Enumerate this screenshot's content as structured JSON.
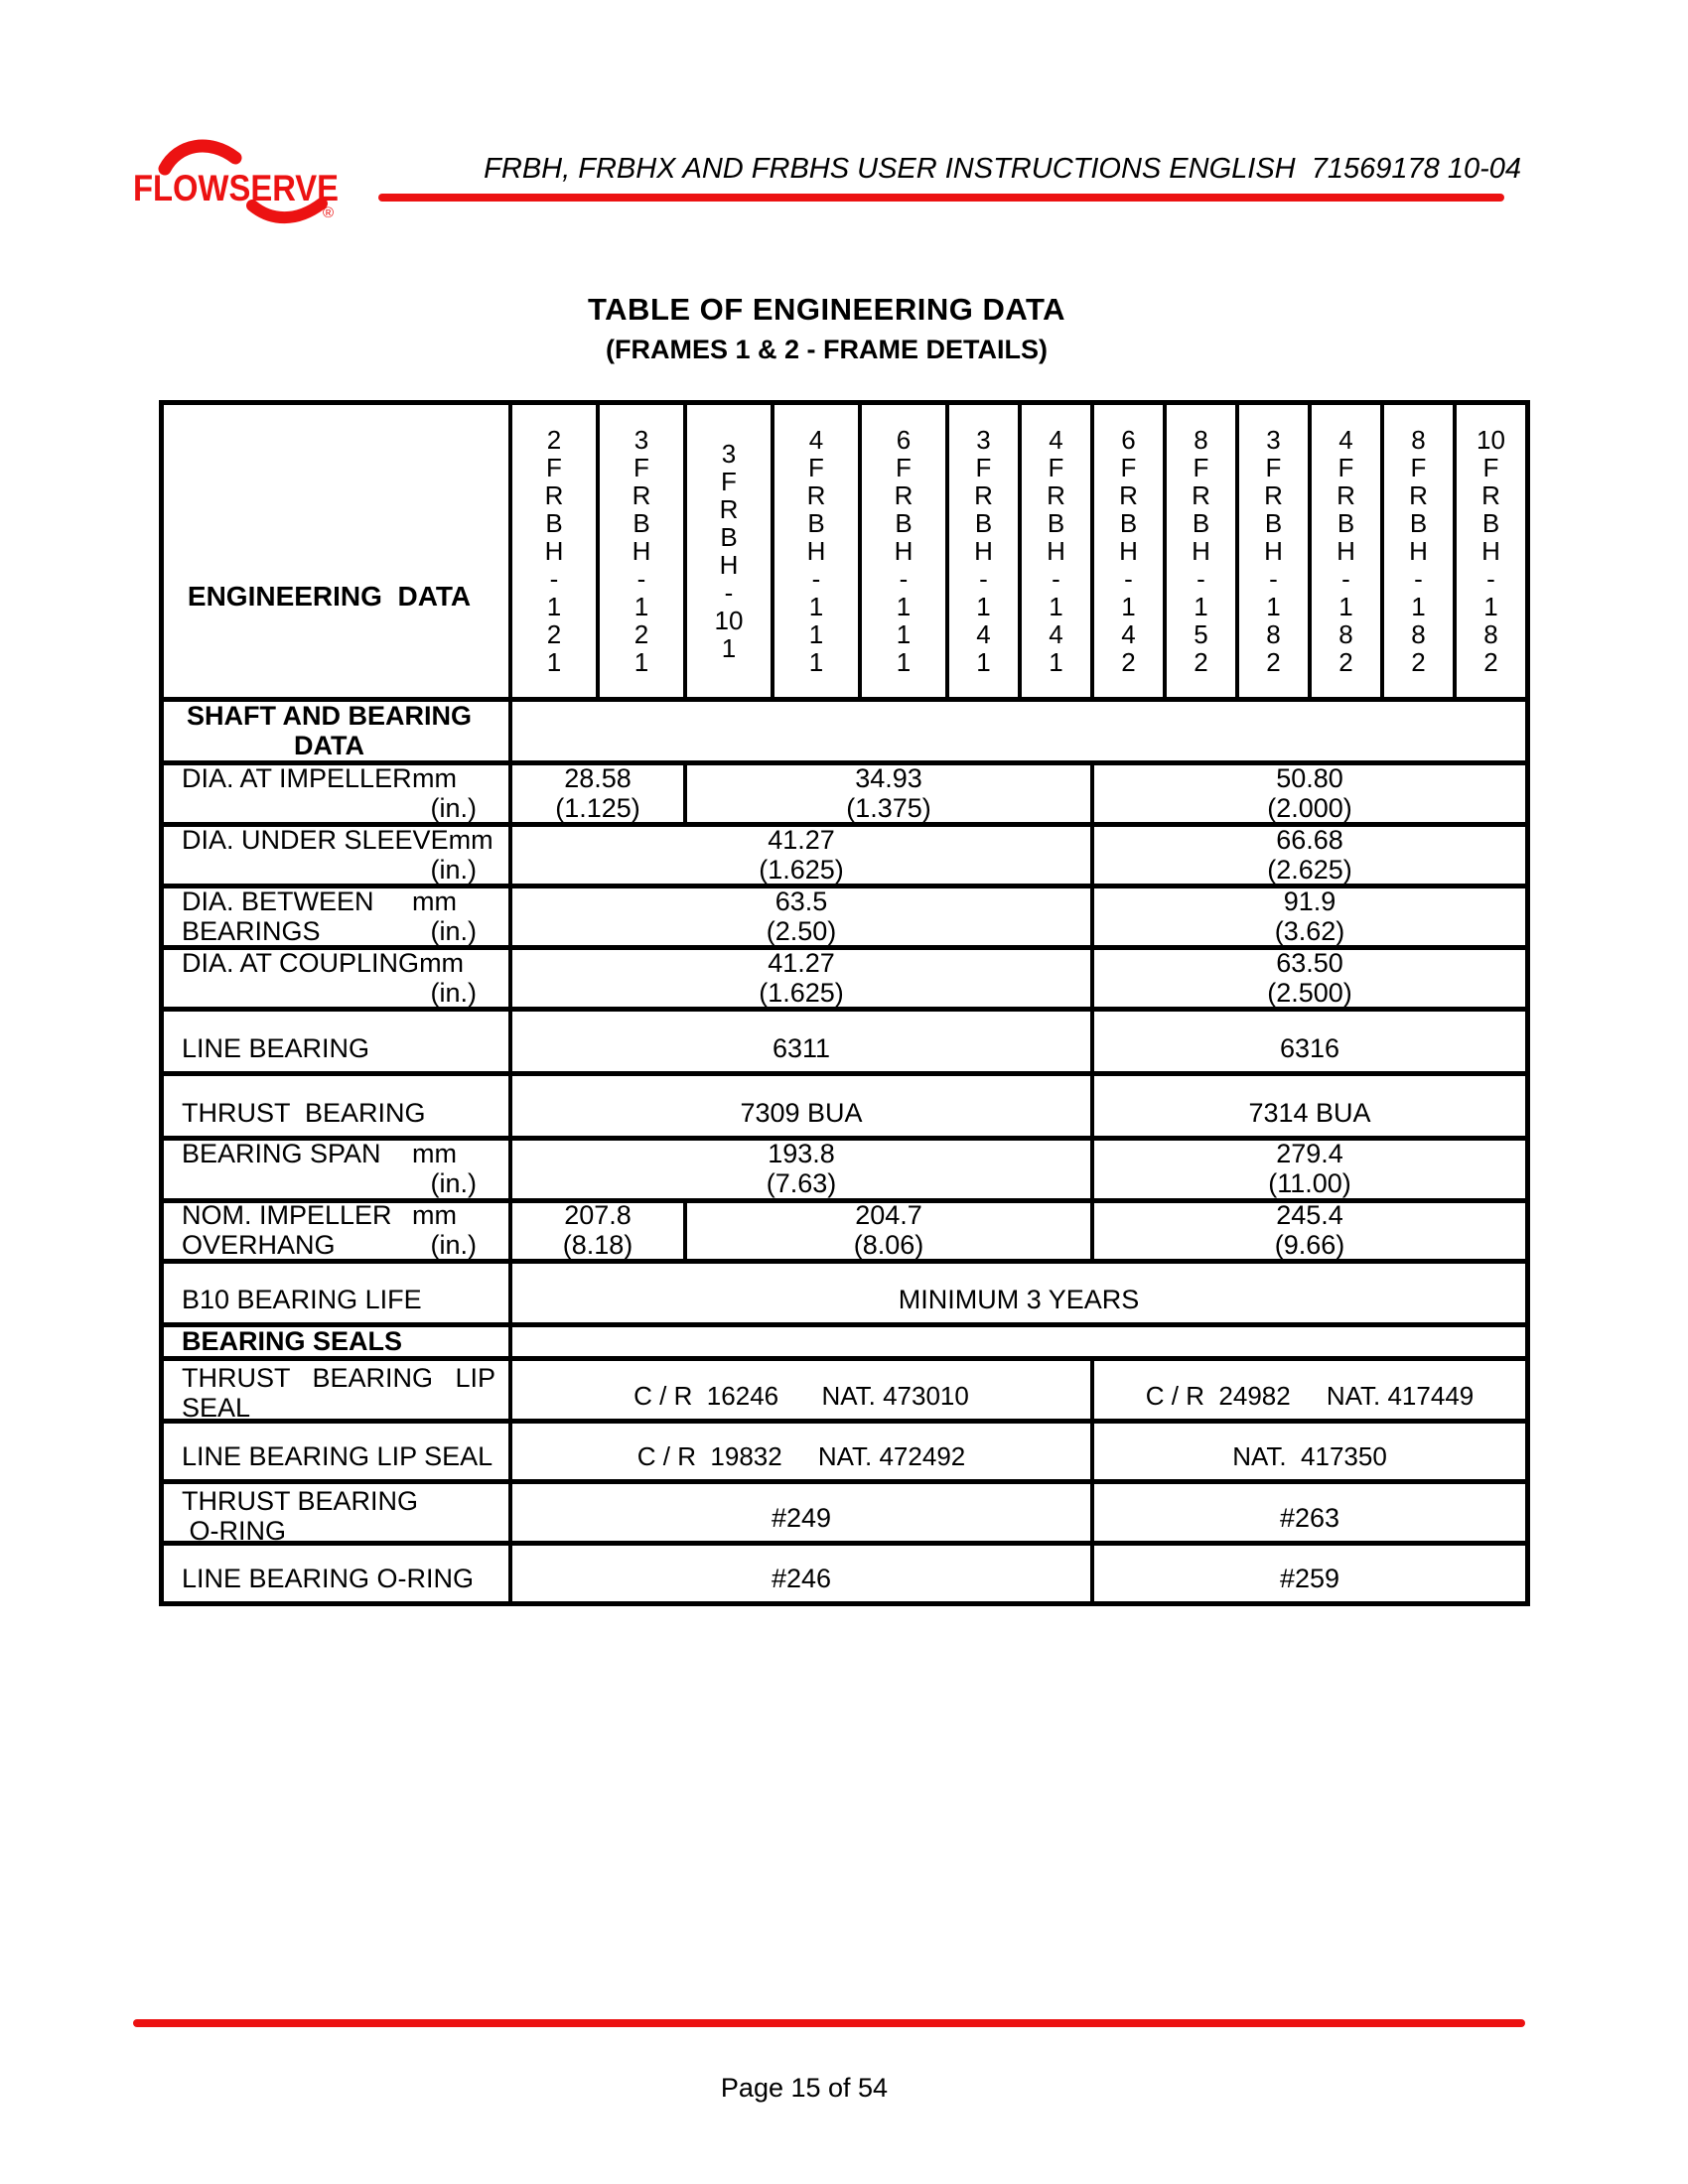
{
  "page": {
    "doc_header": "FRBH, FRBHX AND FRBHS USER INSTRUCTIONS ENGLISH  71569178 10-04",
    "title": "TABLE OF ENGINEERING DATA",
    "subtitle": "(FRAMES 1 & 2 - FRAME DETAILS)",
    "footer_page_label": "Page 15 of 54",
    "accent_red": "#ec1212"
  },
  "logo": {
    "text": "FLOWSERVE",
    "registered_mark": "®"
  },
  "table": {
    "corner_label": "ENGINEERING  DATA",
    "columns": [
      "2FRBH-121",
      "3FRBH-121",
      "3FRBH-101",
      "4FRBH-111",
      "6FRBH-111",
      "3FRBH-141",
      "4FRBH-141",
      "6FRBH-142",
      "8FRBH-152",
      "3FRBH-182",
      "4FRBH-182",
      "8FRBH-182",
      "10FRBH-182"
    ],
    "rows": [
      {
        "name": "shaft-and-bearing-data-section",
        "bold": true,
        "centered": true,
        "label_lines": [
          {
            "l": "SHAFT AND BEARING",
            "r": ""
          },
          {
            "l": "DATA",
            "r": ""
          }
        ],
        "cells": [
          {
            "span": 13,
            "lines": []
          }
        ]
      },
      {
        "name": "dia-at-impeller",
        "label_lines": [
          {
            "l": "DIA. AT IMPELLER",
            "r": "mm"
          },
          {
            "l": "",
            "r": "(in.)"
          }
        ],
        "cells": [
          {
            "span": 2,
            "lines": [
              "28.58",
              "(1.125)"
            ]
          },
          {
            "span": 5,
            "lines": [
              "34.93",
              "(1.375)"
            ]
          },
          {
            "span": 6,
            "lines": [
              "50.80",
              "(2.000)"
            ]
          }
        ]
      },
      {
        "name": "dia-under-sleeve",
        "label_lines": [
          {
            "l": "DIA. UNDER SLEEVE",
            "r": "mm"
          },
          {
            "l": "",
            "r": "(in.)"
          }
        ],
        "cells": [
          {
            "span": 7,
            "lines": [
              "41.27",
              "(1.625)"
            ]
          },
          {
            "span": 6,
            "lines": [
              "66.68",
              "(2.625)"
            ]
          }
        ]
      },
      {
        "name": "dia-between-bearings",
        "label_lines": [
          {
            "l": "DIA. BETWEEN",
            "r": "mm"
          },
          {
            "l": "BEARINGS",
            "r": "(in.)"
          }
        ],
        "cells": [
          {
            "span": 7,
            "lines": [
              "63.5",
              "(2.50)"
            ]
          },
          {
            "span": 6,
            "lines": [
              "91.9",
              "(3.62)"
            ]
          }
        ]
      },
      {
        "name": "dia-at-coupling",
        "label_lines": [
          {
            "l": "DIA. AT COUPLING",
            "r": "mm"
          },
          {
            "l": "",
            "r": "(in.)"
          }
        ],
        "cells": [
          {
            "span": 7,
            "lines": [
              "41.27",
              "(1.625)"
            ]
          },
          {
            "span": 6,
            "lines": [
              "63.50",
              "(2.500)"
            ]
          }
        ]
      },
      {
        "name": "line-bearing",
        "label_lines": [
          {
            "l": "LINE BEARING",
            "r": ""
          }
        ],
        "cells": [
          {
            "span": 7,
            "lines": [
              "6311"
            ]
          },
          {
            "span": 6,
            "lines": [
              "6316"
            ]
          }
        ]
      },
      {
        "name": "thrust-bearing",
        "label_lines": [
          {
            "l": "THRUST  BEARING",
            "r": ""
          }
        ],
        "cells": [
          {
            "span": 7,
            "lines": [
              "7309 BUA"
            ]
          },
          {
            "span": 6,
            "lines": [
              "7314 BUA"
            ]
          }
        ]
      },
      {
        "name": "bearing-span",
        "label_lines": [
          {
            "l": "BEARING SPAN",
            "r": "mm"
          },
          {
            "l": "",
            "r": "(in.)"
          }
        ],
        "cells": [
          {
            "span": 7,
            "lines": [
              "193.8",
              "(7.63)"
            ]
          },
          {
            "span": 6,
            "lines": [
              "279.4",
              "(11.00)"
            ]
          }
        ]
      },
      {
        "name": "nom-impeller-overhang",
        "label_lines": [
          {
            "l": "NOM. IMPELLER",
            "r": "mm"
          },
          {
            "l": "OVERHANG",
            "r": "(in.)"
          }
        ],
        "cells": [
          {
            "span": 2,
            "lines": [
              "207.8",
              "(8.18)"
            ]
          },
          {
            "span": 5,
            "lines": [
              "204.7",
              "(8.06)"
            ]
          },
          {
            "span": 6,
            "lines": [
              "245.4",
              "(9.66)"
            ]
          }
        ]
      },
      {
        "name": "b10-bearing-life",
        "label_lines": [
          {
            "l": "B10 BEARING LIFE",
            "r": ""
          }
        ],
        "cells": [
          {
            "span": 13,
            "lines": [
              "MINIMUM 3 YEARS"
            ]
          }
        ]
      },
      {
        "name": "bearing-seals-section",
        "bold": true,
        "label_lines": [
          {
            "l": "BEARING SEALS",
            "r": ""
          }
        ],
        "cells": [
          {
            "span": 13,
            "lines": []
          }
        ]
      },
      {
        "name": "thrust-bearing-lip-seal",
        "seal": true,
        "label_lines": [
          {
            "l": "THRUST   BEARING   LIP",
            "r": ""
          },
          {
            "l": "SEAL",
            "r": ""
          }
        ],
        "cells": [
          {
            "span": 7,
            "lines": [
              "C / R  16246      NAT. 473010"
            ]
          },
          {
            "span": 6,
            "lines": [
              "C / R  24982     NAT. 417449"
            ]
          }
        ]
      },
      {
        "name": "line-bearing-lip-seal",
        "seal": true,
        "label_lines": [
          {
            "l": "LINE BEARING LIP SEAL",
            "r": ""
          }
        ],
        "cells": [
          {
            "span": 7,
            "lines": [
              "C / R  19832     NAT. 472492"
            ]
          },
          {
            "span": 6,
            "lines": [
              "NAT.  417350"
            ]
          }
        ]
      },
      {
        "name": "thrust-bearing-o-ring",
        "label_lines": [
          {
            "l": "THRUST BEARING",
            "r": ""
          },
          {
            "l": " O-RING",
            "r": ""
          }
        ],
        "cells": [
          {
            "span": 7,
            "lines": [
              "#249"
            ]
          },
          {
            "span": 6,
            "lines": [
              "#263"
            ]
          }
        ]
      },
      {
        "name": "line-bearing-o-ring",
        "label_lines": [
          {
            "l": "LINE BEARING O-RING",
            "r": ""
          }
        ],
        "cells": [
          {
            "span": 7,
            "lines": [
              "#246"
            ]
          },
          {
            "span": 6,
            "lines": [
              "#259"
            ]
          }
        ]
      }
    ]
  }
}
